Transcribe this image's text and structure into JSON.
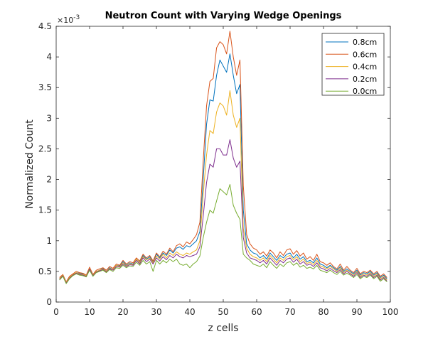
{
  "chart_data": {
    "type": "line",
    "title": "Neutron Count with Varying Wedge Openings",
    "xlabel": "z cells",
    "ylabel": "Normalized Count",
    "y_exponent_label": "×10",
    "y_exponent_power": "-3",
    "xlim": [
      0,
      100
    ],
    "ylim": [
      0,
      4.5
    ],
    "xticks": [
      0,
      10,
      20,
      30,
      40,
      50,
      60,
      70,
      80,
      90,
      100
    ],
    "yticks": [
      0,
      0.5,
      1,
      1.5,
      2,
      2.5,
      3,
      3.5,
      4,
      4.5
    ],
    "xtick_labels": [
      "0",
      "10",
      "20",
      "30",
      "40",
      "50",
      "60",
      "70",
      "80",
      "90",
      "100"
    ],
    "ytick_labels": [
      "0",
      "0.5",
      "1",
      "1.5",
      "2",
      "2.5",
      "3",
      "3.5",
      "4",
      "4.5"
    ],
    "grid": false,
    "legend_position": "top-right",
    "x": [
      1,
      2,
      3,
      4,
      5,
      6,
      7,
      8,
      9,
      10,
      11,
      12,
      13,
      14,
      15,
      16,
      17,
      18,
      19,
      20,
      21,
      22,
      23,
      24,
      25,
      26,
      27,
      28,
      29,
      30,
      31,
      32,
      33,
      34,
      35,
      36,
      37,
      38,
      39,
      40,
      41,
      42,
      43,
      44,
      45,
      46,
      47,
      48,
      49,
      50,
      51,
      52,
      53,
      54,
      55,
      56,
      57,
      58,
      59,
      60,
      61,
      62,
      63,
      64,
      65,
      66,
      67,
      68,
      69,
      70,
      71,
      72,
      73,
      74,
      75,
      76,
      77,
      78,
      79,
      80,
      81,
      82,
      83,
      84,
      85,
      86,
      87,
      88,
      89,
      90,
      91,
      92,
      93,
      94,
      95,
      96,
      97,
      98,
      99
    ],
    "series": [
      {
        "name": "0.8cm",
        "color": "#0072BD",
        "values": [
          0.38,
          0.43,
          0.32,
          0.4,
          0.44,
          0.48,
          0.47,
          0.46,
          0.42,
          0.55,
          0.43,
          0.5,
          0.52,
          0.55,
          0.5,
          0.56,
          0.53,
          0.6,
          0.59,
          0.66,
          0.6,
          0.64,
          0.62,
          0.7,
          0.65,
          0.76,
          0.7,
          0.74,
          0.65,
          0.78,
          0.72,
          0.8,
          0.76,
          0.85,
          0.8,
          0.88,
          0.9,
          0.86,
          0.92,
          0.9,
          0.95,
          1.0,
          1.15,
          2.0,
          2.9,
          3.3,
          3.28,
          3.7,
          3.95,
          3.85,
          3.75,
          4.05,
          3.7,
          3.4,
          3.55,
          1.5,
          0.95,
          0.85,
          0.8,
          0.78,
          0.72,
          0.76,
          0.7,
          0.8,
          0.74,
          0.68,
          0.76,
          0.72,
          0.78,
          0.8,
          0.72,
          0.78,
          0.7,
          0.74,
          0.66,
          0.68,
          0.64,
          0.72,
          0.62,
          0.6,
          0.56,
          0.6,
          0.56,
          0.52,
          0.58,
          0.5,
          0.54,
          0.5,
          0.46,
          0.52,
          0.44,
          0.48,
          0.46,
          0.5,
          0.44,
          0.48,
          0.4,
          0.44,
          0.38
        ]
      },
      {
        "name": "0.6cm",
        "color": "#D95319",
        "values": [
          0.4,
          0.45,
          0.33,
          0.42,
          0.46,
          0.5,
          0.48,
          0.47,
          0.44,
          0.57,
          0.45,
          0.52,
          0.54,
          0.56,
          0.52,
          0.58,
          0.55,
          0.62,
          0.6,
          0.68,
          0.62,
          0.66,
          0.64,
          0.72,
          0.67,
          0.78,
          0.72,
          0.76,
          0.67,
          0.8,
          0.74,
          0.83,
          0.78,
          0.88,
          0.82,
          0.92,
          0.95,
          0.9,
          0.98,
          0.95,
          1.02,
          1.1,
          1.3,
          2.3,
          3.2,
          3.6,
          3.65,
          4.15,
          4.25,
          4.2,
          4.05,
          4.42,
          4.0,
          3.7,
          3.95,
          1.9,
          1.1,
          0.95,
          0.88,
          0.85,
          0.78,
          0.82,
          0.75,
          0.85,
          0.8,
          0.72,
          0.82,
          0.76,
          0.85,
          0.87,
          0.78,
          0.84,
          0.75,
          0.8,
          0.7,
          0.74,
          0.68,
          0.78,
          0.66,
          0.64,
          0.6,
          0.64,
          0.58,
          0.54,
          0.62,
          0.52,
          0.58,
          0.52,
          0.48,
          0.55,
          0.46,
          0.5,
          0.48,
          0.52,
          0.46,
          0.5,
          0.42,
          0.46,
          0.4
        ]
      },
      {
        "name": "0.4cm",
        "color": "#EDB120",
        "values": [
          0.38,
          0.44,
          0.32,
          0.4,
          0.45,
          0.48,
          0.46,
          0.45,
          0.43,
          0.55,
          0.44,
          0.5,
          0.52,
          0.54,
          0.5,
          0.55,
          0.53,
          0.6,
          0.58,
          0.64,
          0.59,
          0.63,
          0.61,
          0.7,
          0.64,
          0.74,
          0.69,
          0.72,
          0.64,
          0.75,
          0.7,
          0.78,
          0.72,
          0.8,
          0.76,
          0.82,
          0.78,
          0.76,
          0.8,
          0.78,
          0.82,
          0.85,
          1.0,
          1.75,
          2.4,
          2.8,
          2.75,
          3.1,
          3.25,
          3.2,
          3.05,
          3.45,
          3.05,
          2.85,
          3.0,
          1.2,
          0.88,
          0.78,
          0.74,
          0.72,
          0.68,
          0.72,
          0.66,
          0.76,
          0.7,
          0.64,
          0.72,
          0.68,
          0.74,
          0.76,
          0.69,
          0.74,
          0.66,
          0.7,
          0.63,
          0.65,
          0.61,
          0.68,
          0.59,
          0.57,
          0.54,
          0.58,
          0.54,
          0.5,
          0.56,
          0.48,
          0.52,
          0.48,
          0.44,
          0.5,
          0.42,
          0.46,
          0.44,
          0.48,
          0.42,
          0.46,
          0.38,
          0.42,
          0.36
        ]
      },
      {
        "name": "0.2cm",
        "color": "#7E2F8E",
        "values": [
          0.37,
          0.43,
          0.31,
          0.39,
          0.44,
          0.47,
          0.45,
          0.44,
          0.42,
          0.54,
          0.43,
          0.49,
          0.51,
          0.53,
          0.49,
          0.54,
          0.52,
          0.58,
          0.57,
          0.62,
          0.58,
          0.61,
          0.6,
          0.68,
          0.62,
          0.72,
          0.66,
          0.7,
          0.62,
          0.72,
          0.67,
          0.74,
          0.69,
          0.76,
          0.72,
          0.78,
          0.74,
          0.72,
          0.76,
          0.74,
          0.76,
          0.78,
          0.9,
          1.4,
          1.95,
          2.25,
          2.2,
          2.5,
          2.5,
          2.4,
          2.4,
          2.65,
          2.35,
          2.2,
          2.3,
          1.05,
          0.8,
          0.72,
          0.7,
          0.68,
          0.64,
          0.68,
          0.62,
          0.72,
          0.66,
          0.6,
          0.68,
          0.64,
          0.7,
          0.72,
          0.65,
          0.7,
          0.62,
          0.66,
          0.6,
          0.62,
          0.58,
          0.64,
          0.56,
          0.54,
          0.51,
          0.55,
          0.51,
          0.48,
          0.53,
          0.46,
          0.5,
          0.46,
          0.42,
          0.48,
          0.4,
          0.44,
          0.42,
          0.46,
          0.4,
          0.44,
          0.36,
          0.4,
          0.34
        ]
      },
      {
        "name": "0.0cm",
        "color": "#77AC30",
        "values": [
          0.36,
          0.42,
          0.3,
          0.38,
          0.43,
          0.46,
          0.44,
          0.43,
          0.41,
          0.52,
          0.42,
          0.48,
          0.5,
          0.52,
          0.48,
          0.53,
          0.5,
          0.56,
          0.55,
          0.6,
          0.56,
          0.59,
          0.58,
          0.65,
          0.6,
          0.68,
          0.62,
          0.66,
          0.5,
          0.68,
          0.62,
          0.68,
          0.64,
          0.7,
          0.66,
          0.7,
          0.62,
          0.6,
          0.62,
          0.56,
          0.62,
          0.66,
          0.75,
          1.05,
          1.3,
          1.5,
          1.45,
          1.65,
          1.85,
          1.8,
          1.75,
          1.92,
          1.58,
          1.45,
          1.35,
          0.78,
          0.72,
          0.68,
          0.62,
          0.6,
          0.58,
          0.62,
          0.56,
          0.66,
          0.6,
          0.55,
          0.62,
          0.58,
          0.64,
          0.66,
          0.6,
          0.64,
          0.57,
          0.6,
          0.55,
          0.57,
          0.54,
          0.6,
          0.52,
          0.5,
          0.48,
          0.52,
          0.48,
          0.45,
          0.5,
          0.44,
          0.47,
          0.44,
          0.4,
          0.45,
          0.38,
          0.42,
          0.4,
          0.44,
          0.38,
          0.42,
          0.34,
          0.38,
          0.33
        ]
      }
    ]
  }
}
